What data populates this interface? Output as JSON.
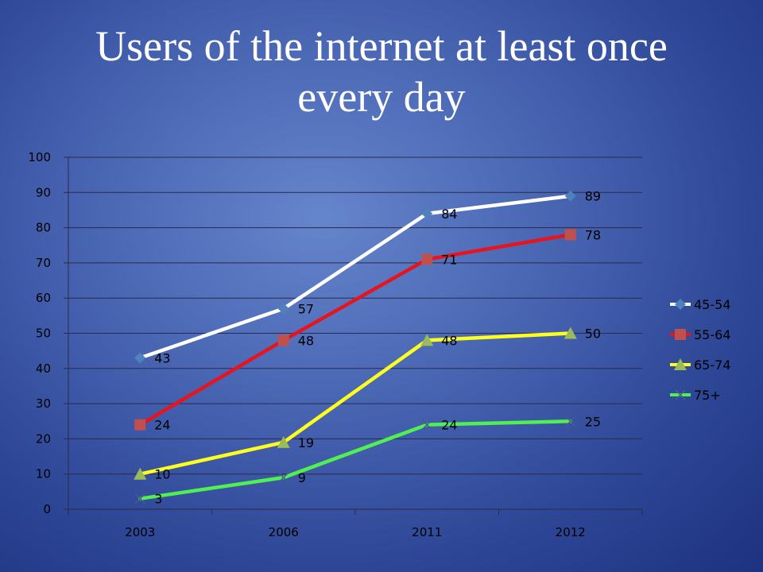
{
  "slide": {
    "title": "Users of the internet at least once every day"
  },
  "chart_data": {
    "type": "line",
    "title": "Users of the internet at least once every day",
    "xlabel": "",
    "ylabel": "",
    "categories": [
      "2003",
      "2006",
      "2011",
      "2012"
    ],
    "ylim": [
      0,
      100
    ],
    "yticks": [
      0,
      10,
      20,
      30,
      40,
      50,
      60,
      70,
      80,
      90,
      100
    ],
    "grid": true,
    "legend_position": "right",
    "series": [
      {
        "name": "45-54",
        "values": [
          43,
          57,
          84,
          89
        ],
        "line_color": "#ffffff",
        "marker": "diamond",
        "marker_color": "#4f81bd"
      },
      {
        "name": "55-64",
        "values": [
          24,
          48,
          71,
          78
        ],
        "line_color": "#e8131c",
        "marker": "square",
        "marker_color": "#c0504d"
      },
      {
        "name": "65-74",
        "values": [
          10,
          19,
          48,
          50
        ],
        "line_color": "#ffff1e",
        "marker": "triangle",
        "marker_color": "#9bbb59"
      },
      {
        "name": "75+",
        "values": [
          3,
          9,
          24,
          25
        ],
        "line_color": "#50f050",
        "marker": "x",
        "marker_color": "#4a5a8c"
      }
    ]
  }
}
